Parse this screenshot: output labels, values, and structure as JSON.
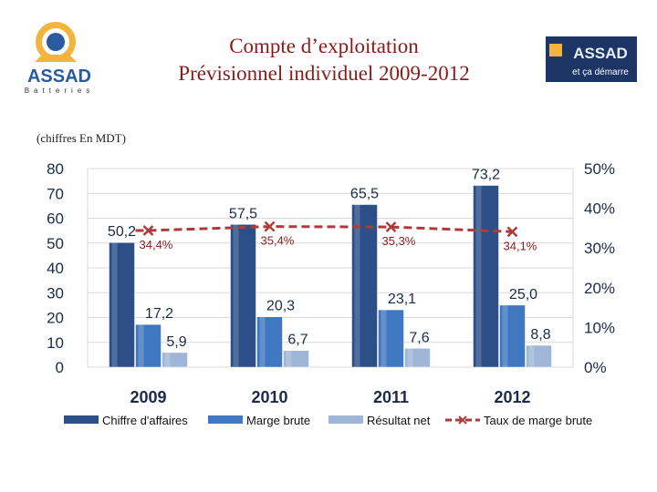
{
  "header": {
    "title_line1": "Compte d’exploitation",
    "title_line2": "Prévisionnel individuel 2009-2012",
    "units_note": "(chiffres En MDT)"
  },
  "logos": {
    "left_name": "ASSAD",
    "left_sub": "Batteries",
    "right_name": "ASSAD",
    "right_tag": "et ça démarre"
  },
  "colors": {
    "ca": "#2b4f86",
    "marge": "#3f78c0",
    "resultat": "#9fb6d6",
    "taux": "#b03a3a"
  },
  "chart_data": {
    "type": "bar",
    "categories": [
      "2009",
      "2010",
      "2011",
      "2012"
    ],
    "series": [
      {
        "name": "Chiffre d'affaires",
        "values": [
          50.2,
          57.5,
          65.5,
          73.2
        ],
        "labels": [
          "50,2",
          "57,5",
          "65,5",
          "73,2"
        ]
      },
      {
        "name": "Marge brute",
        "values": [
          17.2,
          20.3,
          23.1,
          25.0
        ],
        "labels": [
          "17,2",
          "20,3",
          "23,1",
          "25,0"
        ]
      },
      {
        "name": "Résultat net",
        "values": [
          5.9,
          6.7,
          7.6,
          8.8
        ],
        "labels": [
          "5,9",
          "6,7",
          "7,6",
          "8,8"
        ]
      }
    ],
    "line_series": {
      "name": "Taux de marge brute",
      "axis": "right",
      "values": [
        34.4,
        35.4,
        35.3,
        34.1
      ],
      "labels": [
        "34,4%",
        "35,4%",
        "35,3%",
        "34,1%"
      ]
    },
    "ylim": [
      0,
      80
    ],
    "yticks": [
      "0",
      "10",
      "20",
      "30",
      "40",
      "50",
      "60",
      "70",
      "80"
    ],
    "y2lim": [
      0,
      50
    ],
    "y2ticks": [
      "0%",
      "10%",
      "20%",
      "30%",
      "40%",
      "50%"
    ],
    "grid": true,
    "legend_position": "bottom"
  }
}
